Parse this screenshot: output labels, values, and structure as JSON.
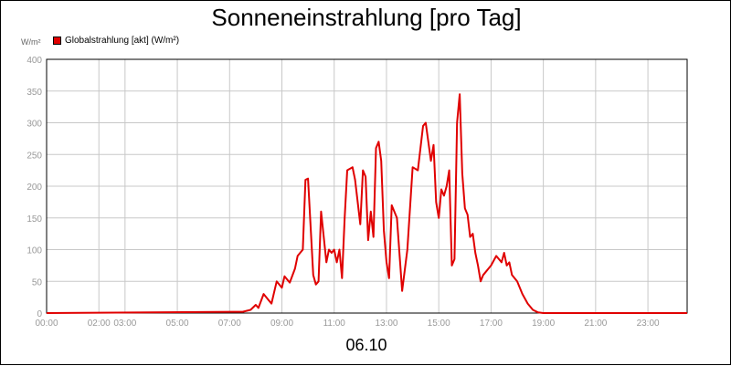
{
  "title": "Sonneneinstrahlung [pro Tag]",
  "y_unit": "W/m²",
  "legend_label": "Globalstrahlung [akt] (W/m²)",
  "date_label": "06.10",
  "colors": {
    "series": "#e00000",
    "grid": "#c8c8c8",
    "ticks": "#999999"
  },
  "chart_data": {
    "type": "line",
    "title": "Sonneneinstrahlung [pro Tag]",
    "xlabel": "06.10",
    "ylabel": "W/m²",
    "ylim": [
      0,
      400
    ],
    "xlim_hours": [
      0,
      24.5
    ],
    "yticks": [
      0,
      50,
      100,
      150,
      200,
      250,
      300,
      350,
      400
    ],
    "xticks": [
      {
        "h": 0,
        "label": "00:00"
      },
      {
        "h": 2,
        "label": "02:00"
      },
      {
        "h": 3,
        "label": "03:00"
      },
      {
        "h": 5,
        "label": "05:00"
      },
      {
        "h": 7,
        "label": "07:00"
      },
      {
        "h": 9,
        "label": "09:00"
      },
      {
        "h": 11,
        "label": "11:00"
      },
      {
        "h": 13,
        "label": "13:00"
      },
      {
        "h": 15,
        "label": "15:00"
      },
      {
        "h": 17,
        "label": "17:00"
      },
      {
        "h": 19,
        "label": "19:00"
      },
      {
        "h": 21,
        "label": "21:00"
      },
      {
        "h": 23,
        "label": "23:00"
      }
    ],
    "grid": true,
    "legend_position": "top-left",
    "series": [
      {
        "name": "Globalstrahlung [akt] (W/m²)",
        "color": "#e00000",
        "x": [
          0,
          7.5,
          7.8,
          8.0,
          8.1,
          8.3,
          8.5,
          8.6,
          8.8,
          9.0,
          9.1,
          9.3,
          9.5,
          9.6,
          9.8,
          9.9,
          10.0,
          10.2,
          10.3,
          10.4,
          10.5,
          10.7,
          10.8,
          10.9,
          11.0,
          11.1,
          11.2,
          11.3,
          11.4,
          11.5,
          11.7,
          11.8,
          12.0,
          12.1,
          12.2,
          12.3,
          12.4,
          12.5,
          12.6,
          12.7,
          12.8,
          12.9,
          13.0,
          13.1,
          13.2,
          13.4,
          13.6,
          13.8,
          14.0,
          14.2,
          14.4,
          14.5,
          14.7,
          14.8,
          14.9,
          15.0,
          15.1,
          15.2,
          15.3,
          15.4,
          15.5,
          15.6,
          15.7,
          15.8,
          15.9,
          16.0,
          16.1,
          16.2,
          16.3,
          16.4,
          16.5,
          16.6,
          16.7,
          16.8,
          16.9,
          17.0,
          17.2,
          17.4,
          17.5,
          17.6,
          17.7,
          17.8,
          18.0,
          18.2,
          18.4,
          18.6,
          18.8,
          19.0,
          19.2,
          24.5
        ],
        "y": [
          0,
          2,
          5,
          13,
          8,
          30,
          20,
          15,
          50,
          40,
          58,
          48,
          70,
          90,
          100,
          210,
          212,
          60,
          45,
          50,
          160,
          80,
          100,
          95,
          100,
          80,
          100,
          55,
          150,
          225,
          230,
          210,
          140,
          225,
          215,
          115,
          160,
          120,
          260,
          270,
          240,
          130,
          80,
          55,
          170,
          150,
          35,
          100,
          230,
          225,
          295,
          300,
          240,
          265,
          175,
          150,
          195,
          185,
          200,
          225,
          75,
          85,
          300,
          345,
          220,
          165,
          155,
          120,
          125,
          95,
          75,
          50,
          60,
          65,
          70,
          75,
          90,
          80,
          95,
          75,
          80,
          60,
          50,
          30,
          15,
          5,
          1,
          0,
          0,
          0
        ]
      }
    ]
  }
}
